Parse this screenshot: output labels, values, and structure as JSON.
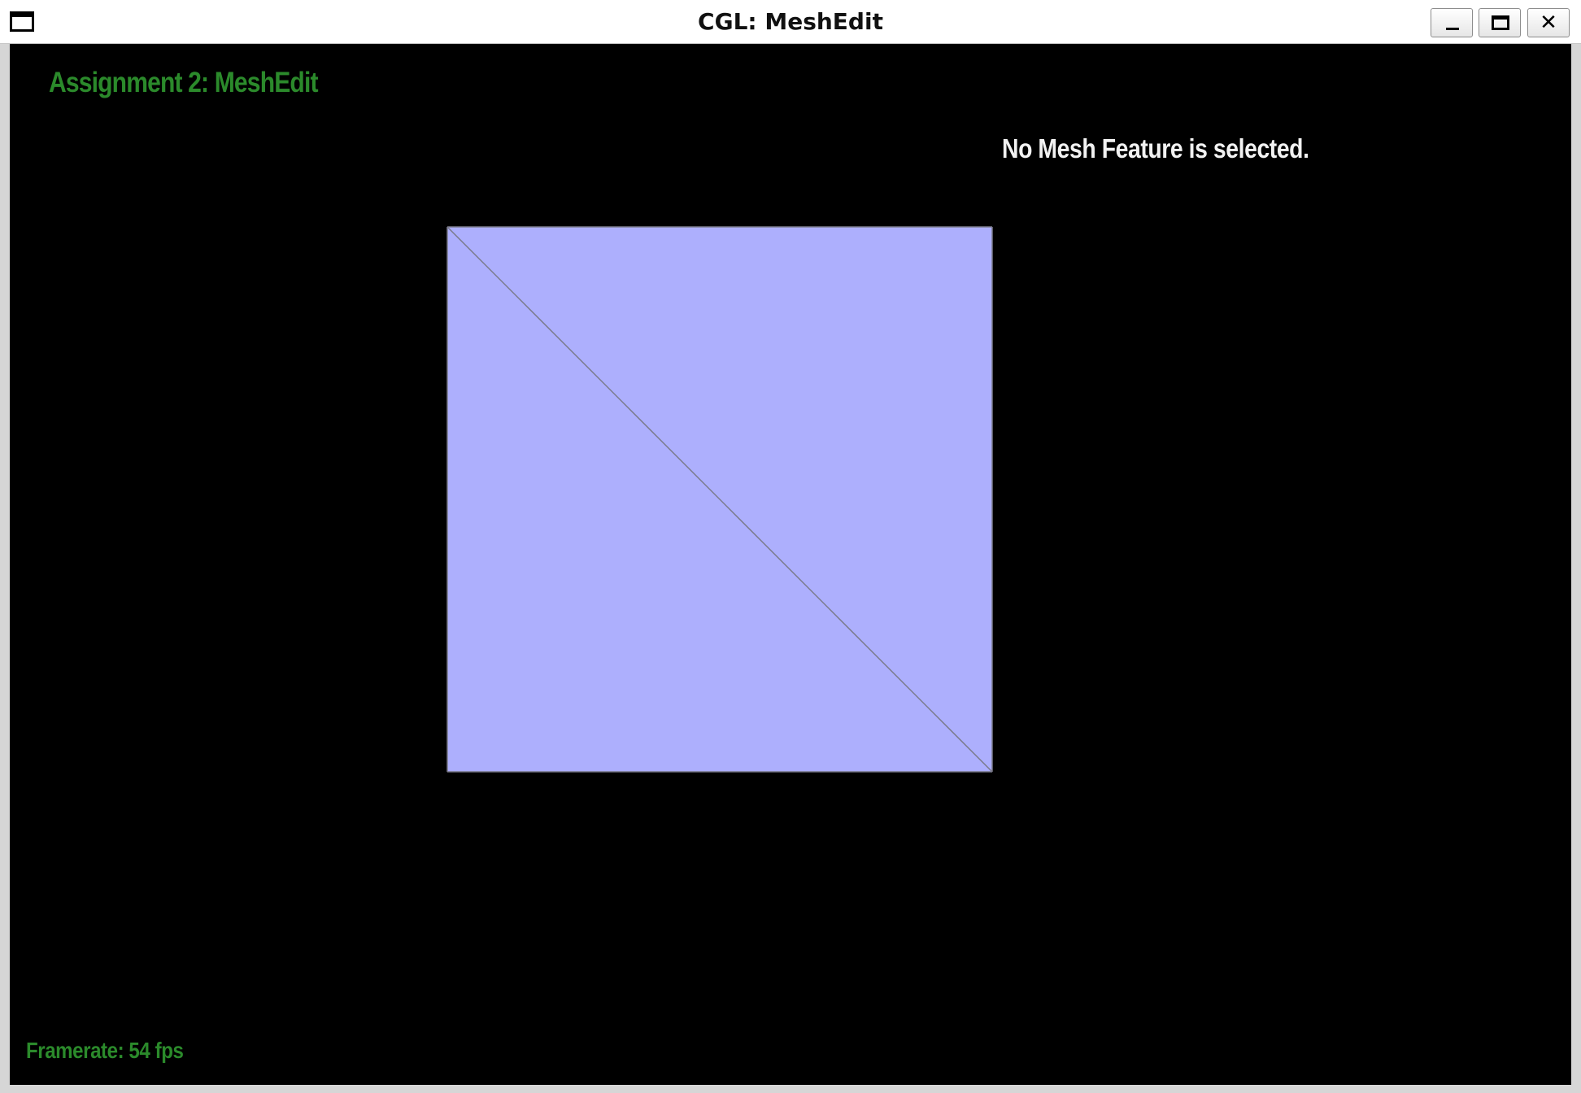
{
  "window": {
    "title": "CGL: MeshEdit",
    "close_glyph": "✕",
    "icons": {
      "window_menu": "window-menu-icon",
      "minimize": "minimize-icon",
      "maximize": "maximize-icon",
      "close": "close-icon"
    }
  },
  "overlay": {
    "app_title": "Assignment 2: MeshEdit",
    "selection_status": "No Mesh Feature is selected.",
    "framerate_label": "Framerate:",
    "framerate_value": "54",
    "framerate_unit": "fps"
  },
  "mesh": {
    "faces": 2,
    "vertices": 4,
    "edges": 5
  },
  "colors": {
    "viewport_background": "#000000",
    "face_fill": "#adaffd",
    "edge_stroke": "#7a7a8a",
    "title_text": "#2b8a2b",
    "status_text": "#f2f2f2"
  }
}
